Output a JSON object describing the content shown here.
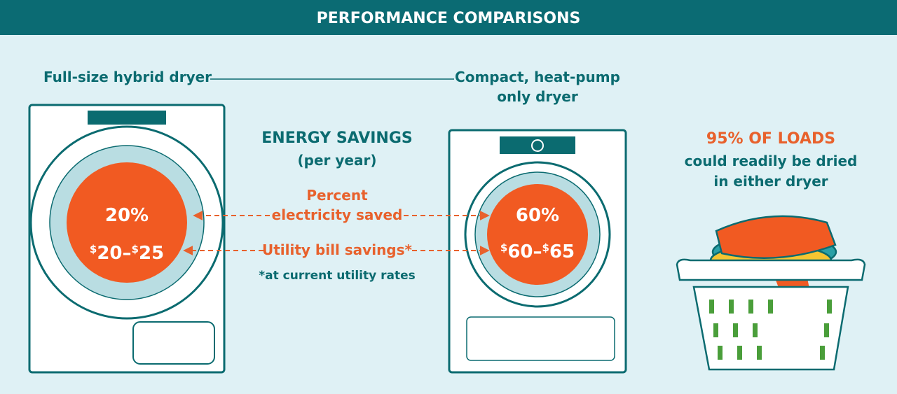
{
  "header": {
    "title": "PERFORMANCE COMPARISONS"
  },
  "left_dryer": {
    "label": "Full-size hybrid dryer",
    "percent": "20%",
    "bill": [
      "$",
      "20–",
      "$",
      "25"
    ]
  },
  "right_dryer": {
    "label": [
      "Compact, heat-pump",
      "only dryer"
    ],
    "percent": "60%",
    "bill": [
      "$",
      "60–",
      "$",
      "65"
    ]
  },
  "center": {
    "title": "ENERGY SAVINGS",
    "subtitle": "(per year)",
    "percent_label": [
      "Percent",
      "electricity saved"
    ],
    "bill_label": "Utility bill savings*",
    "footnote": "*at current utility rates"
  },
  "loads": {
    "title": "95% OF LOADS",
    "lines": [
      "could readily be dried",
      "in either dryer"
    ]
  }
}
